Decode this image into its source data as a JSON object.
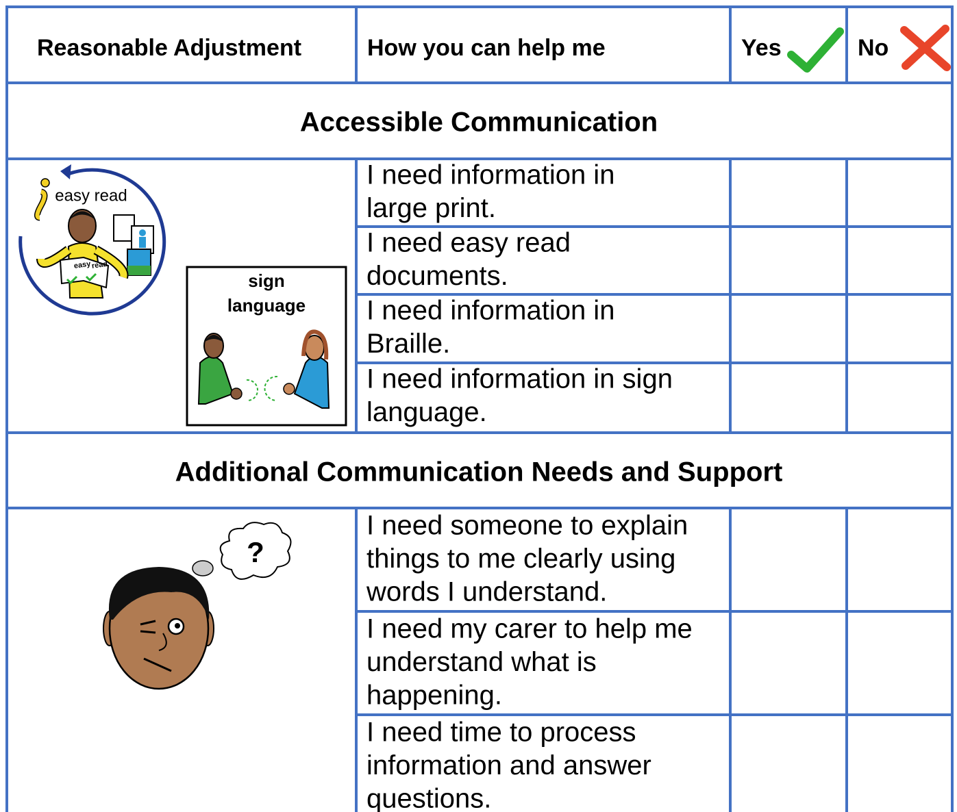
{
  "table": {
    "header": [
      "Reasonable Adjustment",
      "How you can help me",
      "Yes",
      "No"
    ],
    "sections": [
      {
        "title": "Accessible Communication",
        "image_labels": {
          "easy_read": "easy read",
          "sign_language": [
            "sign",
            "language"
          ],
          "book": [
            "easy",
            "read"
          ]
        },
        "rows": [
          [
            "I need information in",
            "large print."
          ],
          [
            "I need easy read",
            "documents."
          ],
          [
            "I need information in",
            "Braille."
          ],
          [
            "I need information in sign",
            "language."
          ]
        ]
      },
      {
        "title": "Additional Communication Needs and Support",
        "image_labels": {
          "question": "?"
        },
        "rows": [
          [
            "I need someone to explain",
            "things to me clearly using",
            "words I understand."
          ],
          [
            "I need my carer to help me",
            "understand what is",
            "happening."
          ],
          [
            "I need time to process",
            "information and answer",
            "questions."
          ]
        ]
      }
    ]
  }
}
